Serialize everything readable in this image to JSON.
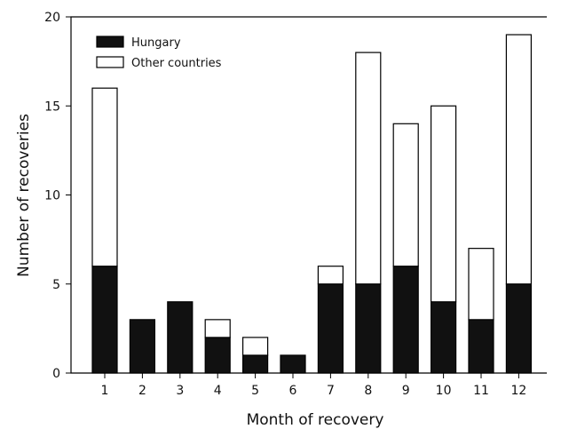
{
  "chart_data": {
    "type": "bar",
    "stacked": true,
    "categories": [
      "1",
      "2",
      "3",
      "4",
      "5",
      "6",
      "7",
      "8",
      "9",
      "10",
      "11",
      "12"
    ],
    "series": [
      {
        "name": "Hungary",
        "color": "#111111",
        "values": [
          6,
          3,
          4,
          2,
          1,
          1,
          5,
          5,
          6,
          4,
          3,
          5
        ]
      },
      {
        "name": "Other countries",
        "color": "#ffffff",
        "values": [
          10,
          0,
          0,
          1,
          1,
          0,
          1,
          13,
          8,
          11,
          4,
          14
        ]
      }
    ],
    "xlabel": "Month of recovery",
    "ylabel": "Number of recoveries",
    "ylim": [
      0,
      20
    ],
    "yticks": [
      "0",
      "5",
      "10",
      "15",
      "20"
    ],
    "grid": false,
    "legend": "top-left"
  }
}
